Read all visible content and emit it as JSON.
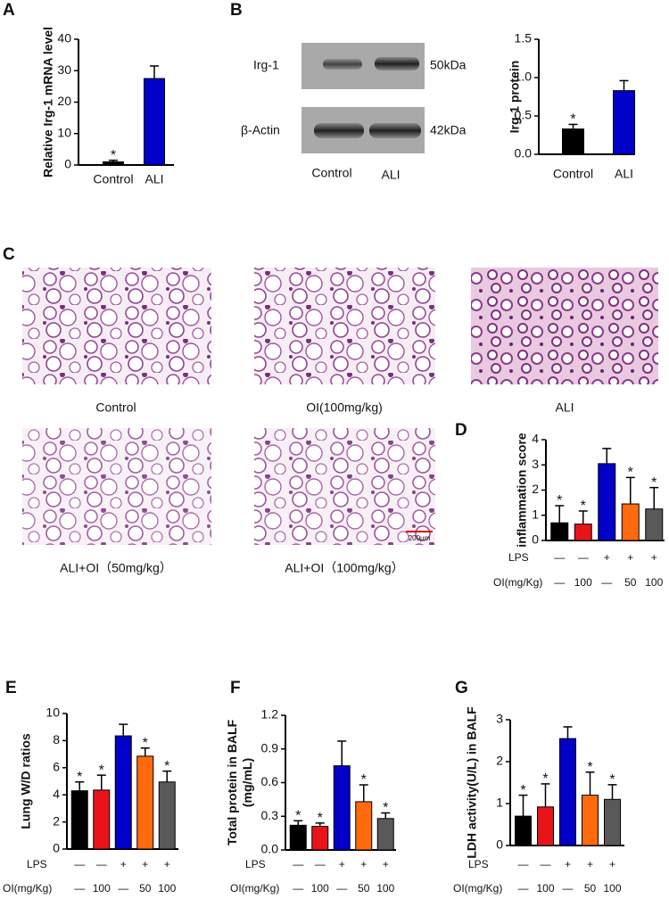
{
  "panel_labels": [
    "A",
    "B",
    "C",
    "D",
    "E",
    "F",
    "G"
  ],
  "blot": {
    "bands": [
      {
        "name": "Irg-1",
        "size": "50kDa"
      },
      {
        "name": "β-Actin",
        "size": "42kDa"
      }
    ],
    "lanes": [
      "Control",
      "ALI"
    ]
  },
  "histology": {
    "captions": [
      "Control",
      "OI(100mg/kg)",
      "ALI",
      "ALI+OI（50mg/kg）",
      "ALI+OI（100mg/kg）"
    ],
    "scale_bar": "200μm"
  },
  "chart_data": [
    {
      "type": "bar",
      "ylabel": "Relative Irg-1 mRNA level",
      "categories": [
        "Control",
        "ALI"
      ],
      "values": [
        1,
        27.5
      ],
      "errors": [
        0.5,
        4
      ],
      "colors": [
        "#000000",
        "#0000c8"
      ],
      "significance": [
        "*",
        null
      ],
      "ylim": [
        0,
        40
      ],
      "yticks": [
        0,
        10,
        20,
        30,
        40
      ]
    },
    {
      "type": "bar",
      "ylabel": "Irg-1  protein",
      "categories": [
        "Control",
        "ALI"
      ],
      "values": [
        0.33,
        0.83
      ],
      "errors": [
        0.06,
        0.13
      ],
      "colors": [
        "#000000",
        "#0000c8"
      ],
      "significance": [
        "*",
        null
      ],
      "ylim": [
        0,
        1.5
      ],
      "yticks": [
        {
          "value": 0,
          "label": "0.0"
        },
        {
          "value": 0.5,
          "label": "0.5"
        },
        {
          "value": 1,
          "label": "1.0"
        },
        {
          "value": 1.5,
          "label": "1.5"
        }
      ]
    },
    {
      "type": "bar",
      "ylabel": "inflammation score",
      "values": [
        0.7,
        0.65,
        3.05,
        1.45,
        1.25
      ],
      "errors": [
        0.68,
        0.52,
        0.6,
        1.05,
        0.85
      ],
      "colors": [
        "#000000",
        "#e8141a",
        "#0000c8",
        "#ff6a0d",
        "#595959"
      ],
      "significance": [
        "*",
        "*",
        null,
        "*",
        "*"
      ],
      "treatments": [
        {
          "name": "LPS",
          "values": [
            "—",
            "—",
            "+",
            "+",
            "+"
          ]
        },
        {
          "name": "OI(mg/Kg)",
          "values": [
            "—",
            "100",
            "—",
            "50",
            "100"
          ]
        }
      ],
      "ylim": [
        0,
        4
      ],
      "yticks": [
        0,
        1,
        2,
        3,
        4
      ]
    },
    {
      "type": "bar",
      "ylabel": "Lung W/D ratios",
      "values": [
        4.3,
        4.35,
        8.35,
        6.85,
        4.95
      ],
      "errors": [
        0.65,
        1.1,
        0.85,
        0.6,
        0.8
      ],
      "colors": [
        "#000000",
        "#e8141a",
        "#0000c8",
        "#ff6a0d",
        "#595959"
      ],
      "significance": [
        "*",
        "*",
        null,
        "*",
        "*"
      ],
      "treatments": [
        {
          "name": "LPS",
          "values": [
            "—",
            "—",
            "+",
            "+",
            "+"
          ]
        },
        {
          "name": "OI(mg/Kg)",
          "values": [
            "—",
            "100",
            "—",
            "50",
            "100"
          ]
        }
      ],
      "ylim": [
        0,
        10
      ],
      "yticks": [
        0,
        2,
        4,
        6,
        8,
        10
      ]
    },
    {
      "type": "bar",
      "ylabel": [
        "Total protein in BALF",
        "(mg/mL)"
      ],
      "values": [
        0.22,
        0.21,
        0.75,
        0.43,
        0.28
      ],
      "errors": [
        0.04,
        0.03,
        0.22,
        0.15,
        0.05
      ],
      "colors": [
        "#000000",
        "#e8141a",
        "#0000c8",
        "#ff6a0d",
        "#595959"
      ],
      "significance": [
        "*",
        "*",
        null,
        "*",
        "*"
      ],
      "treatments": [
        {
          "name": "LPS",
          "values": [
            "—",
            "—",
            "+",
            "+",
            "+"
          ]
        },
        {
          "name": "OI(mg/Kg)",
          "values": [
            "—",
            "100",
            "—",
            "50",
            "100"
          ]
        }
      ],
      "ylim": [
        0,
        1.2
      ],
      "yticks": [
        {
          "value": 0,
          "label": "0.0"
        },
        {
          "value": 0.3,
          "label": "0.3"
        },
        {
          "value": 0.6,
          "label": "0.6"
        },
        {
          "value": 0.9,
          "label": "0.9"
        },
        {
          "value": 1.2,
          "label": "1.2"
        }
      ]
    },
    {
      "type": "bar",
      "ylabel": "LDH activity(U/L) in BALF",
      "values": [
        0.7,
        0.92,
        2.55,
        1.2,
        1.1
      ],
      "errors": [
        0.5,
        0.55,
        0.28,
        0.55,
        0.35
      ],
      "colors": [
        "#000000",
        "#e8141a",
        "#0000c8",
        "#ff6a0d",
        "#595959"
      ],
      "significance": [
        "*",
        "*",
        null,
        "*",
        "*"
      ],
      "treatments": [
        {
          "name": "LPS",
          "values": [
            "—",
            "—",
            "+",
            "+",
            "+"
          ]
        },
        {
          "name": "OI(mg/Kg)",
          "values": [
            "—",
            "100",
            "—",
            "50",
            "100"
          ]
        }
      ],
      "ylim": [
        0,
        3
      ],
      "yticks": [
        0,
        1,
        2,
        3
      ]
    }
  ]
}
